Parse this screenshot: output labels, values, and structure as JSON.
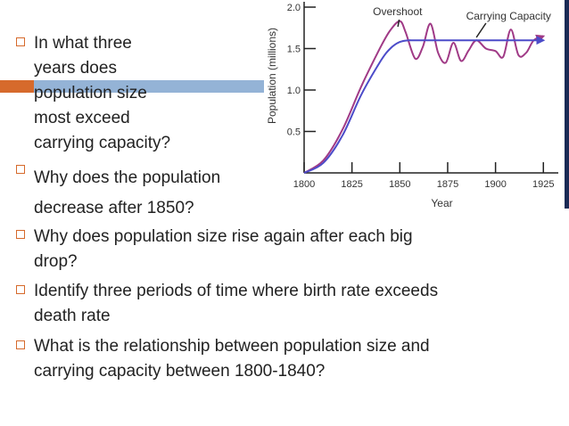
{
  "bullets": [
    {
      "lines": [
        "In what three",
        "years does",
        "population size",
        "most exceed",
        "carrying capacity?"
      ]
    },
    {
      "lines": [
        "Why does the population",
        "decrease after 1850?"
      ]
    },
    {
      "lines": [
        "Why does population size rise again after each big",
        "drop?"
      ]
    },
    {
      "lines": [
        "Identify three periods of time where birth rate exceeds",
        "death rate"
      ]
    },
    {
      "lines": [
        "What is the relationship between population size and",
        "carrying capacity between 1800-1840?"
      ]
    }
  ],
  "chart_data": {
    "type": "line",
    "xlabel": "Year",
    "ylabel": "Population (millions)",
    "xlim": [
      1800,
      1930
    ],
    "ylim": [
      0,
      2.0
    ],
    "xticks": [
      1800,
      1825,
      1850,
      1875,
      1900,
      1925
    ],
    "yticks": [
      0.5,
      1.0,
      1.5,
      2.0
    ],
    "xtick_labels": [
      "1800",
      "1825",
      "1850",
      "1875",
      "1900",
      "1925"
    ],
    "ytick_labels": [
      "0.5",
      "1.0",
      "1.5",
      "2.0"
    ],
    "annotations": [
      "Overshoot",
      "Carrying Capacity"
    ],
    "series": [
      {
        "color": "#a03a86",
        "x": [
          1800,
          1810,
          1820,
          1830,
          1840,
          1845,
          1850,
          1853,
          1858,
          1862,
          1866,
          1870,
          1874,
          1878,
          1882,
          1886,
          1890,
          1895,
          1900,
          1904,
          1908,
          1912,
          1916,
          1920,
          1925
        ],
        "y": [
          0.0,
          0.15,
          0.52,
          1.05,
          1.52,
          1.72,
          1.83,
          1.7,
          1.38,
          1.52,
          1.8,
          1.45,
          1.33,
          1.57,
          1.35,
          1.48,
          1.6,
          1.5,
          1.47,
          1.4,
          1.73,
          1.42,
          1.45,
          1.6,
          1.65
        ]
      },
      {
        "color": "#4c4cc9",
        "x": [
          1800,
          1810,
          1820,
          1830,
          1840,
          1845,
          1850,
          1855,
          1860,
          1900,
          1925
        ],
        "y": [
          0.0,
          0.12,
          0.45,
          0.95,
          1.35,
          1.5,
          1.58,
          1.6,
          1.6,
          1.6,
          1.6
        ]
      }
    ]
  }
}
